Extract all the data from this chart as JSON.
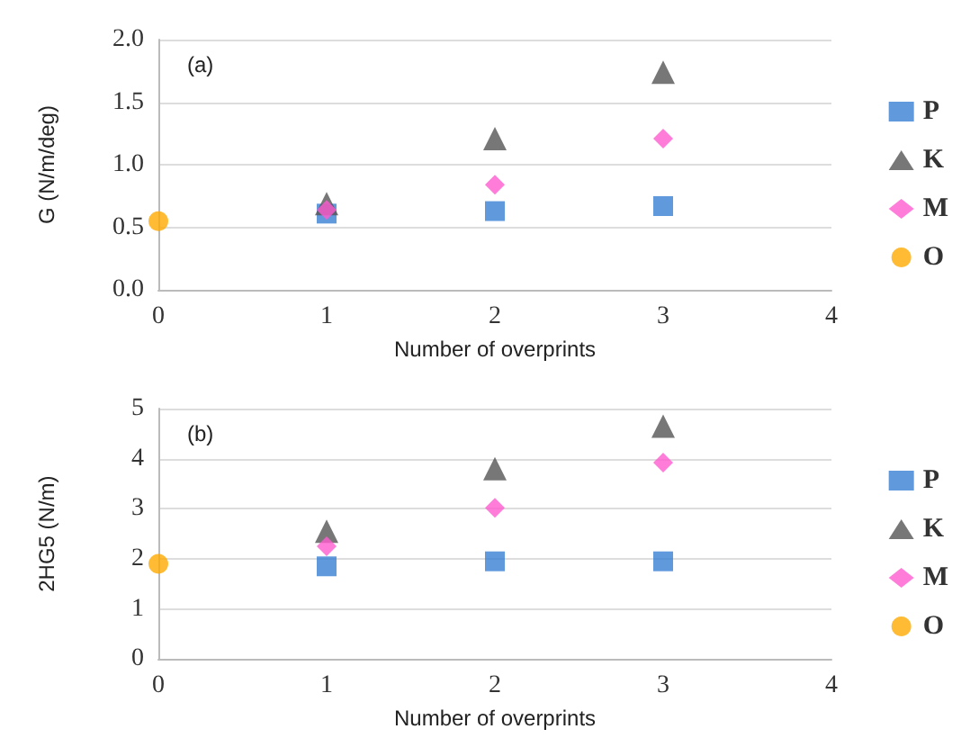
{
  "chart_data": [
    {
      "type": "scatter",
      "xlabel": "Number of overprints",
      "ylabel": "G (N/m/deg)",
      "annotations": [
        "(a)"
      ],
      "xlim": [
        0,
        4
      ],
      "xticks": [
        0,
        1,
        2,
        3,
        4
      ],
      "ylim": [
        0,
        2
      ],
      "yticks": [
        {
          "value": 0,
          "label": "0.0"
        },
        {
          "value": 0.5,
          "label": "0.5"
        },
        {
          "value": 1,
          "label": "1.0"
        },
        {
          "value": 1.5,
          "label": "1.5"
        },
        {
          "value": 2,
          "label": "2.0"
        }
      ],
      "grid": "y",
      "legend": "right",
      "series": [
        {
          "name": "P",
          "color": "#3a7fd5",
          "marker": "square",
          "x": [
            1,
            2,
            3
          ],
          "values": [
            0.61,
            0.63,
            0.67
          ]
        },
        {
          "name": "K",
          "color": "#555555",
          "marker": "triangle",
          "x": [
            1,
            2,
            3
          ],
          "values": [
            0.69,
            1.21,
            1.74
          ]
        },
        {
          "name": "M",
          "color": "#ff5bd0",
          "marker": "diamond",
          "x": [
            1,
            2,
            3
          ],
          "values": [
            0.64,
            0.84,
            1.21
          ]
        },
        {
          "name": "O",
          "color": "#ffaa00",
          "marker": "circle",
          "x": [
            0
          ],
          "values": [
            0.55
          ]
        }
      ]
    },
    {
      "type": "scatter",
      "xlabel": "Number of overprints",
      "ylabel": "2HG5 (N/m)",
      "annotations": [
        "(b)"
      ],
      "xlim": [
        0,
        4
      ],
      "xticks": [
        0,
        1,
        2,
        3,
        4
      ],
      "ylim": [
        0,
        5
      ],
      "yticks": [
        0,
        1,
        2,
        3,
        4,
        5
      ],
      "grid": "y",
      "legend": "right",
      "series": [
        {
          "name": "P",
          "color": "#3a7fd5",
          "marker": "square",
          "x": [
            1,
            2,
            3
          ],
          "values": [
            1.85,
            1.95,
            1.95
          ]
        },
        {
          "name": "K",
          "color": "#555555",
          "marker": "triangle",
          "x": [
            1,
            2,
            3
          ],
          "values": [
            2.55,
            3.8,
            4.65
          ]
        },
        {
          "name": "M",
          "color": "#ff5bd0",
          "marker": "diamond",
          "x": [
            1,
            2,
            3
          ],
          "values": [
            2.25,
            3.02,
            3.92
          ]
        },
        {
          "name": "O",
          "color": "#ffaa00",
          "marker": "circle",
          "x": [
            0
          ],
          "values": [
            1.9
          ]
        }
      ]
    }
  ]
}
